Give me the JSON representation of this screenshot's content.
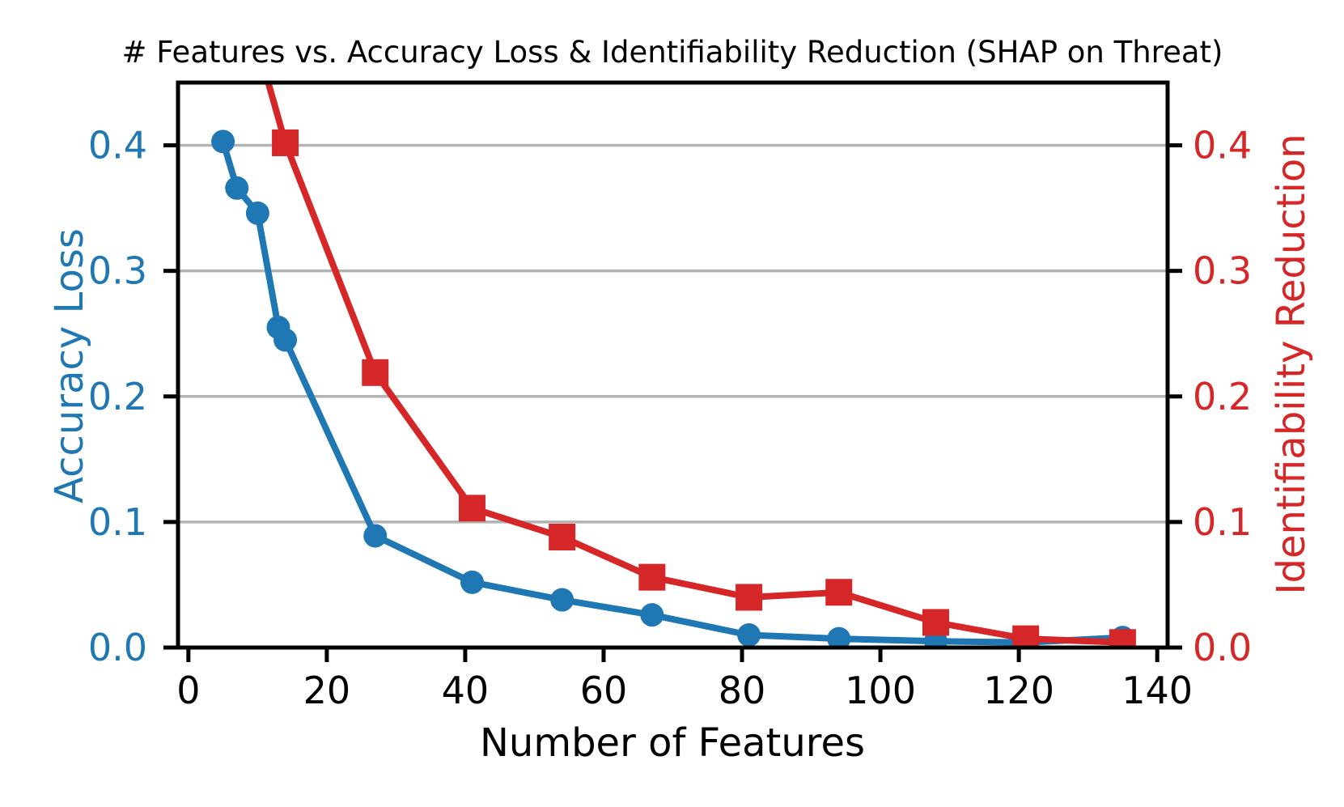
{
  "figure": {
    "background": "#ffffff"
  },
  "chart_data": {
    "type": "line",
    "title": "# Features vs. Accuracy Loss & Identifiability Reduction (SHAP on Threat)",
    "xlabel": "Number of Features",
    "ylabel_left": "Accuracy Loss",
    "ylabel_right": "Identifiability Reduction",
    "xlim": [
      -1.5,
      141.5
    ],
    "ylim_left": [
      0,
      0.45
    ],
    "ylim_right": [
      0,
      0.45
    ],
    "grid": true,
    "grid_color": "#b3b3b3",
    "spine_color": "#000000",
    "x_tick_color": "#000000",
    "left_color": "#1f77b4",
    "right_color": "#d62728",
    "legend": "none",
    "x_ticks": [
      {
        "v": 0,
        "label": "0"
      },
      {
        "v": 20,
        "label": "20"
      },
      {
        "v": 40,
        "label": "40"
      },
      {
        "v": 60,
        "label": "60"
      },
      {
        "v": 80,
        "label": "80"
      },
      {
        "v": 100,
        "label": "100"
      },
      {
        "v": 120,
        "label": "120"
      },
      {
        "v": 140,
        "label": "140"
      }
    ],
    "y_ticks": [
      {
        "v": 0.0,
        "label": "0.0"
      },
      {
        "v": 0.1,
        "label": "0.1"
      },
      {
        "v": 0.2,
        "label": "0.2"
      },
      {
        "v": 0.3,
        "label": "0.3"
      },
      {
        "v": 0.4,
        "label": "0.4"
      }
    ],
    "series": [
      {
        "name": "Accuracy Loss",
        "axis": "left",
        "color": "#1f77b4",
        "marker": "circle",
        "x": [
          5,
          7,
          10,
          13,
          14,
          27,
          41,
          54,
          67,
          81,
          94,
          108,
          121,
          135
        ],
        "y": [
          0.403,
          0.366,
          0.346,
          0.255,
          0.245,
          0.089,
          0.052,
          0.038,
          0.026,
          0.01,
          0.007,
          0.005,
          0.004,
          0.008
        ]
      },
      {
        "name": "Identifiability Reduction",
        "axis": "right",
        "color": "#d62728",
        "marker": "square",
        "x": [
          10,
          14,
          27,
          41,
          54,
          67,
          81,
          94,
          108,
          121,
          135
        ],
        "y": [
          0.48,
          0.402,
          0.219,
          0.111,
          0.088,
          0.056,
          0.04,
          0.044,
          0.02,
          0.007,
          0.004
        ]
      }
    ]
  }
}
